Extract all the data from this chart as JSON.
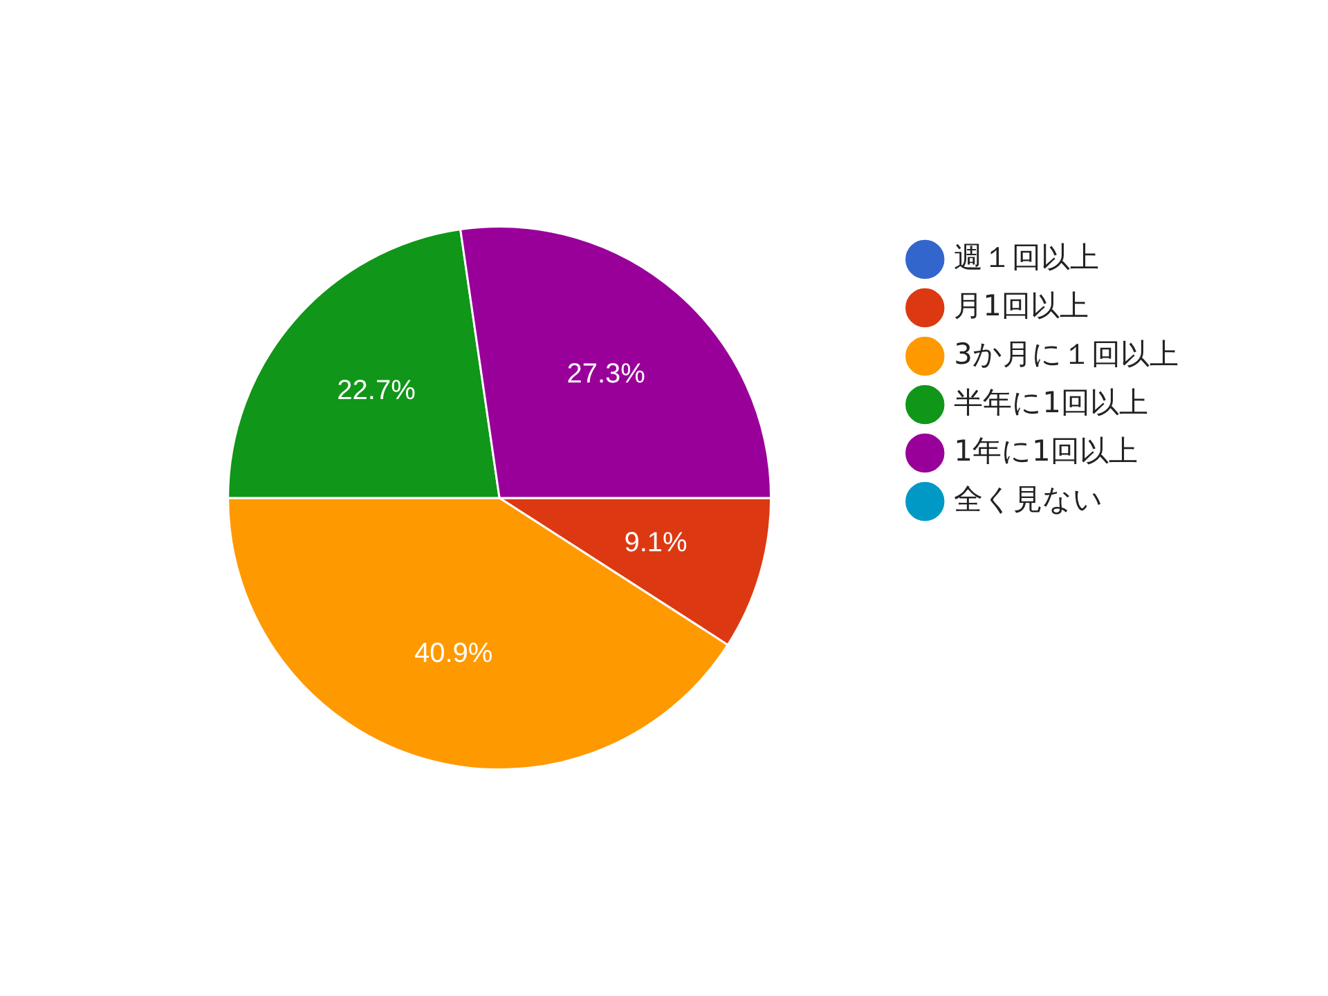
{
  "chart_data": {
    "type": "pie",
    "categories": [
      "週１回以上",
      "月1回以上",
      "3か月に１回以上",
      "半年に1回以上",
      "1年に1回以上",
      "全く見ない"
    ],
    "values": [
      0,
      9.1,
      40.9,
      22.7,
      27.3,
      0
    ],
    "colors": [
      "#3366cc",
      "#dc3912",
      "#ff9900",
      "#109618",
      "#990099",
      "#0099c6"
    ],
    "value_labels": [
      null,
      "9.1%",
      "40.9%",
      "22.7%",
      "27.3%",
      null
    ],
    "legend": "right"
  }
}
